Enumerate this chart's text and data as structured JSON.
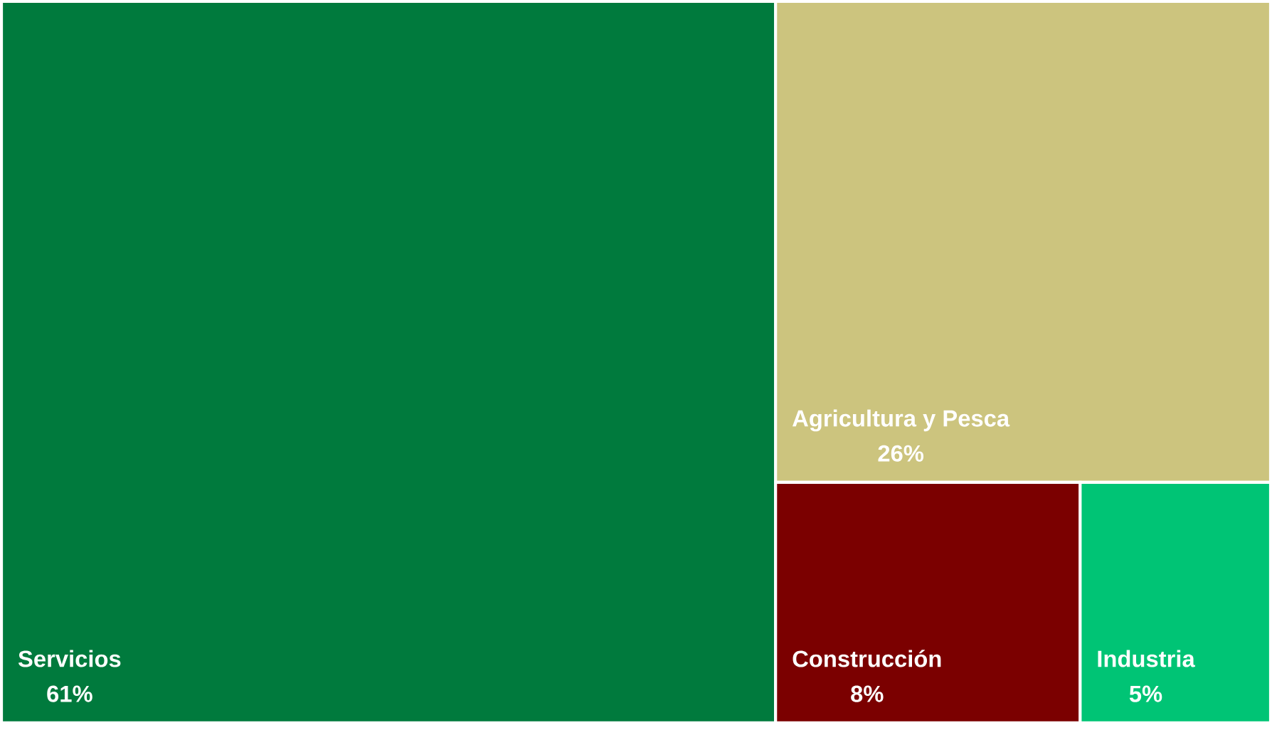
{
  "chart_data": {
    "type": "other",
    "categories": [
      "Servicios",
      "Agricultura y Pesca",
      "Construcción",
      "Industria"
    ],
    "values": [
      61,
      26,
      8,
      5
    ],
    "value_labels": [
      "61%",
      "26%",
      "8%",
      "5%"
    ],
    "colors": [
      "#007a3d",
      "#ccc47e",
      "#7b0000",
      "#00c475"
    ]
  }
}
